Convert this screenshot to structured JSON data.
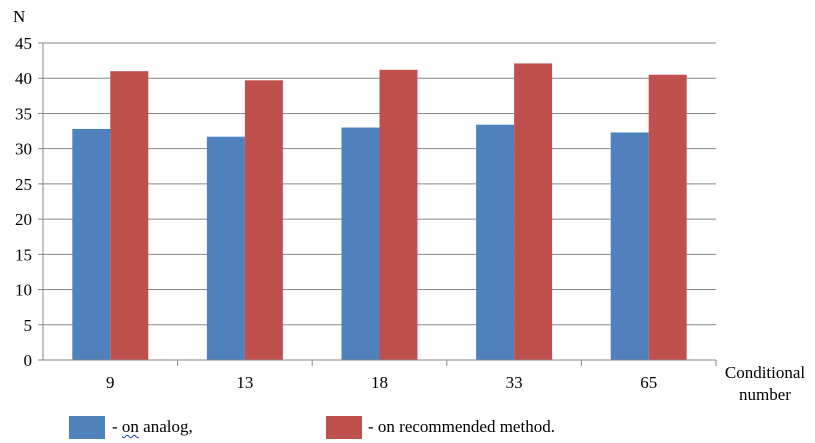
{
  "chart_data": {
    "type": "bar",
    "ylabel": "N",
    "xlabel": "Conditional number",
    "categories": [
      "9",
      "13",
      "18",
      "33",
      "65"
    ],
    "yticks": [
      0,
      5,
      10,
      15,
      20,
      25,
      30,
      35,
      40,
      45
    ],
    "ylim": [
      0,
      45
    ],
    "grid": "horizontal",
    "series": [
      {
        "name": "on analog",
        "color": "#4f81bd",
        "values": [
          32.8,
          31.7,
          33.0,
          33.4,
          32.3
        ]
      },
      {
        "name": "on recommended method",
        "color": "#c0504d",
        "values": [
          41.0,
          39.7,
          41.2,
          42.1,
          40.5
        ]
      }
    ]
  },
  "legend": {
    "analog_prefix": "- ",
    "analog_word": "on",
    "analog_rest": " analog,",
    "recommended_label": "- on recommended method."
  }
}
